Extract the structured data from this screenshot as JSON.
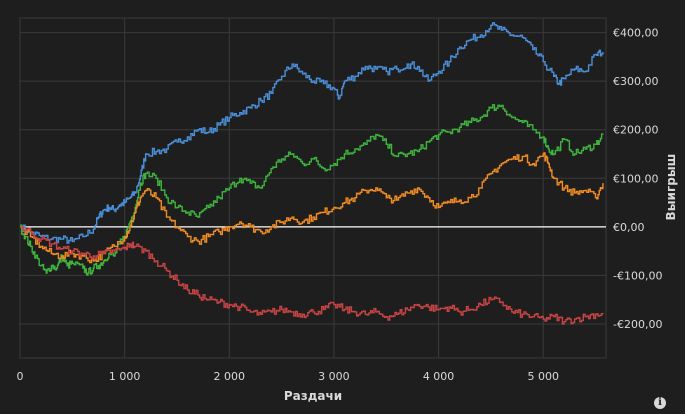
{
  "chart_data": {
    "type": "line",
    "xlabel": "Раздачи",
    "ylabel": "Выигрыш",
    "xlim": [
      0,
      5600
    ],
    "ylim": [
      -270,
      430
    ],
    "grid": true,
    "y_axis_position": "right",
    "x_ticks": [
      {
        "value": 0,
        "label": "0"
      },
      {
        "value": 1000,
        "label": "1 000"
      },
      {
        "value": 2000,
        "label": "2 000"
      },
      {
        "value": 3000,
        "label": "3 000"
      },
      {
        "value": 4000,
        "label": "4 000"
      },
      {
        "value": 5000,
        "label": "5 000"
      }
    ],
    "y_ticks": [
      {
        "value": 400,
        "label": "€400,00"
      },
      {
        "value": 300,
        "label": "€300,00"
      },
      {
        "value": 200,
        "label": "€200,00"
      },
      {
        "value": 100,
        "label": "€100,00"
      },
      {
        "value": 0,
        "label": "€0,00"
      },
      {
        "value": -100,
        "label": "-€100,00"
      },
      {
        "value": -200,
        "label": "-€200,00"
      }
    ],
    "zero_line_color": "#ffffff",
    "series": [
      {
        "color": "#4a8fd8",
        "points": [
          [
            0,
            0
          ],
          [
            100,
            -10
          ],
          [
            200,
            -20
          ],
          [
            300,
            -25
          ],
          [
            400,
            -25
          ],
          [
            500,
            -30
          ],
          [
            600,
            -20
          ],
          [
            700,
            -5
          ],
          [
            750,
            20
          ],
          [
            800,
            35
          ],
          [
            850,
            40
          ],
          [
            900,
            35
          ],
          [
            950,
            45
          ],
          [
            1000,
            50
          ],
          [
            1050,
            60
          ],
          [
            1100,
            70
          ],
          [
            1150,
            105
          ],
          [
            1200,
            150
          ],
          [
            1300,
            155
          ],
          [
            1400,
            160
          ],
          [
            1500,
            175
          ],
          [
            1600,
            185
          ],
          [
            1700,
            200
          ],
          [
            1800,
            195
          ],
          [
            1900,
            210
          ],
          [
            2000,
            225
          ],
          [
            2100,
            235
          ],
          [
            2200,
            245
          ],
          [
            2300,
            260
          ],
          [
            2400,
            275
          ],
          [
            2500,
            310
          ],
          [
            2600,
            335
          ],
          [
            2700,
            315
          ],
          [
            2800,
            300
          ],
          [
            2900,
            295
          ],
          [
            3000,
            285
          ],
          [
            3050,
            265
          ],
          [
            3100,
            300
          ],
          [
            3200,
            310
          ],
          [
            3300,
            330
          ],
          [
            3400,
            325
          ],
          [
            3500,
            320
          ],
          [
            3600,
            325
          ],
          [
            3700,
            335
          ],
          [
            3800,
            330
          ],
          [
            3900,
            300
          ],
          [
            4000,
            320
          ],
          [
            4100,
            340
          ],
          [
            4200,
            370
          ],
          [
            4300,
            385
          ],
          [
            4400,
            395
          ],
          [
            4500,
            415
          ],
          [
            4600,
            405
          ],
          [
            4700,
            395
          ],
          [
            4800,
            390
          ],
          [
            4900,
            365
          ],
          [
            5000,
            340
          ],
          [
            5100,
            310
          ],
          [
            5150,
            295
          ],
          [
            5200,
            305
          ],
          [
            5300,
            325
          ],
          [
            5400,
            320
          ],
          [
            5500,
            355
          ],
          [
            5570,
            360
          ]
        ]
      },
      {
        "color": "#3eb33e",
        "points": [
          [
            0,
            0
          ],
          [
            50,
            -20
          ],
          [
            100,
            -40
          ],
          [
            150,
            -60
          ],
          [
            200,
            -80
          ],
          [
            250,
            -95
          ],
          [
            300,
            -80
          ],
          [
            350,
            -85
          ],
          [
            400,
            -60
          ],
          [
            450,
            -80
          ],
          [
            500,
            -75
          ],
          [
            600,
            -85
          ],
          [
            650,
            -95
          ],
          [
            700,
            -85
          ],
          [
            750,
            -80
          ],
          [
            800,
            -70
          ],
          [
            850,
            -55
          ],
          [
            900,
            -60
          ],
          [
            950,
            -35
          ],
          [
            1000,
            -20
          ],
          [
            1050,
            10
          ],
          [
            1100,
            40
          ],
          [
            1150,
            90
          ],
          [
            1200,
            110
          ],
          [
            1300,
            100
          ],
          [
            1400,
            60
          ],
          [
            1500,
            40
          ],
          [
            1600,
            30
          ],
          [
            1700,
            20
          ],
          [
            1800,
            40
          ],
          [
            1900,
            60
          ],
          [
            2000,
            80
          ],
          [
            2100,
            100
          ],
          [
            2200,
            90
          ],
          [
            2300,
            80
          ],
          [
            2400,
            120
          ],
          [
            2500,
            140
          ],
          [
            2600,
            150
          ],
          [
            2700,
            130
          ],
          [
            2800,
            140
          ],
          [
            2900,
            120
          ],
          [
            3000,
            130
          ],
          [
            3100,
            150
          ],
          [
            3200,
            160
          ],
          [
            3300,
            170
          ],
          [
            3400,
            190
          ],
          [
            3500,
            170
          ],
          [
            3600,
            145
          ],
          [
            3700,
            150
          ],
          [
            3800,
            155
          ],
          [
            3900,
            175
          ],
          [
            4000,
            190
          ],
          [
            4100,
            195
          ],
          [
            4200,
            205
          ],
          [
            4300,
            215
          ],
          [
            4400,
            225
          ],
          [
            4500,
            245
          ],
          [
            4600,
            250
          ],
          [
            4700,
            225
          ],
          [
            4800,
            215
          ],
          [
            4900,
            200
          ],
          [
            5000,
            185
          ],
          [
            5050,
            160
          ],
          [
            5100,
            150
          ],
          [
            5200,
            180
          ],
          [
            5300,
            150
          ],
          [
            5400,
            160
          ],
          [
            5500,
            170
          ],
          [
            5570,
            190
          ]
        ]
      },
      {
        "color": "#f08c24",
        "points": [
          [
            0,
            0
          ],
          [
            100,
            -20
          ],
          [
            200,
            -40
          ],
          [
            300,
            -55
          ],
          [
            400,
            -60
          ],
          [
            500,
            -55
          ],
          [
            600,
            -60
          ],
          [
            700,
            -70
          ],
          [
            800,
            -55
          ],
          [
            900,
            -40
          ],
          [
            1000,
            -20
          ],
          [
            1050,
            0
          ],
          [
            1100,
            30
          ],
          [
            1150,
            60
          ],
          [
            1200,
            75
          ],
          [
            1300,
            60
          ],
          [
            1400,
            20
          ],
          [
            1500,
            0
          ],
          [
            1600,
            -20
          ],
          [
            1700,
            -30
          ],
          [
            1800,
            -20
          ],
          [
            1900,
            -10
          ],
          [
            2000,
            0
          ],
          [
            2100,
            10
          ],
          [
            2200,
            0
          ],
          [
            2300,
            -10
          ],
          [
            2400,
            0
          ],
          [
            2500,
            10
          ],
          [
            2600,
            20
          ],
          [
            2700,
            10
          ],
          [
            2800,
            20
          ],
          [
            2900,
            30
          ],
          [
            3000,
            40
          ],
          [
            3100,
            50
          ],
          [
            3200,
            60
          ],
          [
            3300,
            75
          ],
          [
            3400,
            80
          ],
          [
            3500,
            60
          ],
          [
            3600,
            55
          ],
          [
            3700,
            70
          ],
          [
            3800,
            80
          ],
          [
            3900,
            60
          ],
          [
            4000,
            40
          ],
          [
            4100,
            50
          ],
          [
            4200,
            55
          ],
          [
            4300,
            60
          ],
          [
            4400,
            80
          ],
          [
            4500,
            110
          ],
          [
            4600,
            130
          ],
          [
            4700,
            140
          ],
          [
            4800,
            145
          ],
          [
            4900,
            130
          ],
          [
            5000,
            150
          ],
          [
            5050,
            130
          ],
          [
            5100,
            100
          ],
          [
            5200,
            80
          ],
          [
            5300,
            70
          ],
          [
            5400,
            75
          ],
          [
            5500,
            60
          ],
          [
            5570,
            90
          ]
        ]
      },
      {
        "color": "#c84444",
        "points": [
          [
            0,
            0
          ],
          [
            100,
            -10
          ],
          [
            200,
            -25
          ],
          [
            300,
            -35
          ],
          [
            400,
            -45
          ],
          [
            500,
            -50
          ],
          [
            600,
            -55
          ],
          [
            700,
            -60
          ],
          [
            800,
            -55
          ],
          [
            900,
            -50
          ],
          [
            1000,
            -45
          ],
          [
            1050,
            -35
          ],
          [
            1100,
            -40
          ],
          [
            1200,
            -50
          ],
          [
            1300,
            -70
          ],
          [
            1400,
            -90
          ],
          [
            1500,
            -110
          ],
          [
            1600,
            -130
          ],
          [
            1700,
            -140
          ],
          [
            1800,
            -150
          ],
          [
            1900,
            -155
          ],
          [
            2000,
            -160
          ],
          [
            2100,
            -165
          ],
          [
            2200,
            -175
          ],
          [
            2300,
            -180
          ],
          [
            2400,
            -175
          ],
          [
            2500,
            -170
          ],
          [
            2600,
            -175
          ],
          [
            2700,
            -180
          ],
          [
            2800,
            -175
          ],
          [
            2900,
            -170
          ],
          [
            3000,
            -160
          ],
          [
            3100,
            -170
          ],
          [
            3200,
            -175
          ],
          [
            3300,
            -180
          ],
          [
            3400,
            -175
          ],
          [
            3500,
            -185
          ],
          [
            3600,
            -180
          ],
          [
            3700,
            -170
          ],
          [
            3800,
            -160
          ],
          [
            3900,
            -165
          ],
          [
            4000,
            -170
          ],
          [
            4100,
            -165
          ],
          [
            4200,
            -175
          ],
          [
            4300,
            -170
          ],
          [
            4400,
            -160
          ],
          [
            4500,
            -150
          ],
          [
            4600,
            -155
          ],
          [
            4700,
            -175
          ],
          [
            4800,
            -180
          ],
          [
            4900,
            -185
          ],
          [
            5000,
            -190
          ],
          [
            5100,
            -185
          ],
          [
            5200,
            -195
          ],
          [
            5300,
            -190
          ],
          [
            5400,
            -185
          ],
          [
            5500,
            -180
          ],
          [
            5570,
            -180
          ]
        ]
      }
    ]
  },
  "info_icon": {
    "glyph": "i",
    "name": "info-icon"
  }
}
